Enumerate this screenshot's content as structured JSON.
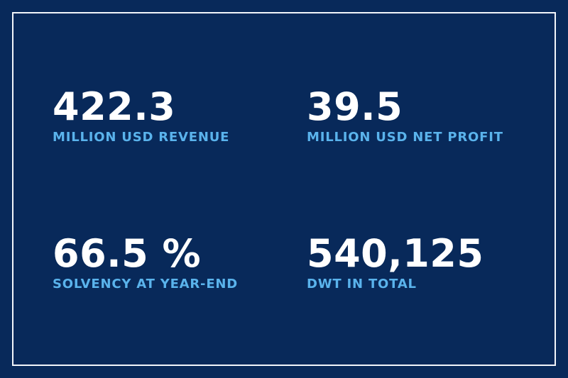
{
  "colors": {
    "background": "#08295a",
    "frame": "#f2f5fa",
    "value_text": "#ffffff",
    "label_text": "#5ab3ec"
  },
  "stats": [
    {
      "value": "422.3",
      "label": "MILLION USD REVENUE"
    },
    {
      "value": "39.5",
      "label": "MILLION USD NET PROFIT"
    },
    {
      "value": "66.5 %",
      "label": "SOLVENCY AT YEAR-END"
    },
    {
      "value": "540,125",
      "label": "DWT IN TOTAL"
    }
  ]
}
